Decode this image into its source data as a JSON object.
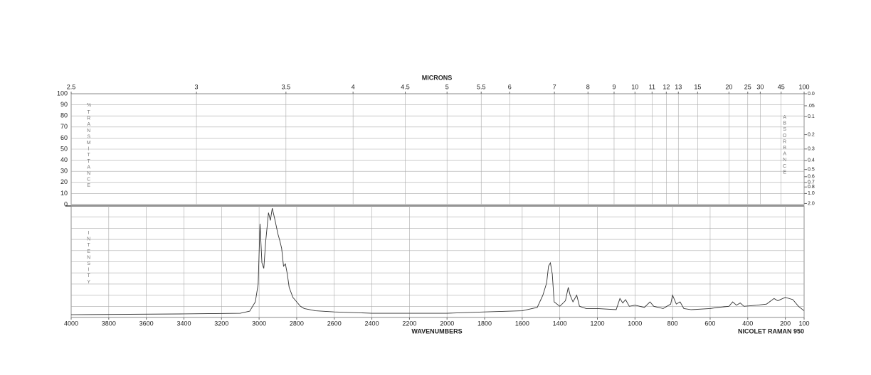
{
  "chart_data": {
    "type": "line",
    "title": "MICRONS",
    "xlabel": "WAVENUMBERS",
    "instrument": "NICOLET RAMAN 950",
    "ylabel_top": "%",
    "ylabel": "TRANSMITTANCE",
    "y2label": "ABSORBANCE",
    "y3label": "INTENSITY",
    "xlim": [
      4000,
      100
    ],
    "xticks": [
      4000,
      3800,
      3600,
      3400,
      3200,
      3000,
      2800,
      2600,
      2400,
      2200,
      2000,
      1800,
      1600,
      1400,
      1200,
      1000,
      800,
      600,
      400,
      200,
      100
    ],
    "micron_ticks": [
      2.5,
      3,
      3.5,
      4,
      4.5,
      5,
      5.5,
      6,
      7,
      8,
      9,
      10,
      11,
      12,
      13,
      15,
      20,
      25,
      30,
      45,
      100
    ],
    "ylim": [
      0,
      100
    ],
    "yticks": [
      0,
      10,
      20,
      30,
      40,
      50,
      60,
      70,
      80,
      90,
      100
    ],
    "y2ticks": [
      {
        "value": 0,
        "label": "0.0"
      },
      {
        "value": 0.05,
        "label": ".05"
      },
      {
        "value": 0.1,
        "label": "0.1"
      },
      {
        "value": 0.2,
        "label": "0.2"
      },
      {
        "value": 0.3,
        "label": "0.3"
      },
      {
        "value": 0.4,
        "label": "0.4"
      },
      {
        "value": 0.5,
        "label": "0.5"
      },
      {
        "value": 0.6,
        "label": "0.6"
      },
      {
        "value": 0.7,
        "label": "0.7"
      },
      {
        "value": 0.8,
        "label": "0.8"
      },
      {
        "value": 1,
        "label": "1.0"
      },
      {
        "value": 2,
        "label": "2.0"
      }
    ],
    "intensity_lim": [
      0,
      100
    ],
    "grid": true,
    "color": "#333333",
    "x": [
      4000,
      3400,
      3100,
      3050,
      3020,
      3005,
      2995,
      2985,
      2975,
      2965,
      2950,
      2940,
      2930,
      2915,
      2900,
      2890,
      2880,
      2870,
      2860,
      2850,
      2840,
      2820,
      2800,
      2780,
      2760,
      2700,
      2600,
      2400,
      2000,
      1800,
      1600,
      1520,
      1490,
      1470,
      1460,
      1450,
      1440,
      1430,
      1400,
      1370,
      1355,
      1345,
      1330,
      1310,
      1295,
      1260,
      1200,
      1100,
      1080,
      1065,
      1050,
      1030,
      1000,
      950,
      920,
      900,
      850,
      810,
      800,
      780,
      760,
      740,
      700,
      600,
      560,
      500,
      480,
      460,
      440,
      420,
      350,
      300,
      260,
      240,
      200,
      160,
      130,
      100
    ],
    "values": [
      2.5,
      3.2,
      3.8,
      5.7,
      14,
      30,
      84,
      49,
      44,
      68,
      94,
      87,
      98,
      87,
      75,
      69,
      62,
      46,
      48,
      39,
      27,
      18,
      14,
      10,
      8,
      6,
      5,
      3.8,
      3.8,
      5,
      6,
      9,
      20,
      31,
      46,
      49,
      39,
      14,
      10,
      15,
      27,
      20,
      14,
      20,
      10,
      8,
      8,
      7,
      17,
      13,
      16,
      10,
      11,
      9,
      14,
      10,
      8,
      12,
      20,
      12,
      14,
      8,
      7,
      8,
      9,
      10,
      14,
      11,
      13,
      10,
      11,
      12,
      17,
      15,
      18,
      16,
      10,
      6
    ]
  }
}
